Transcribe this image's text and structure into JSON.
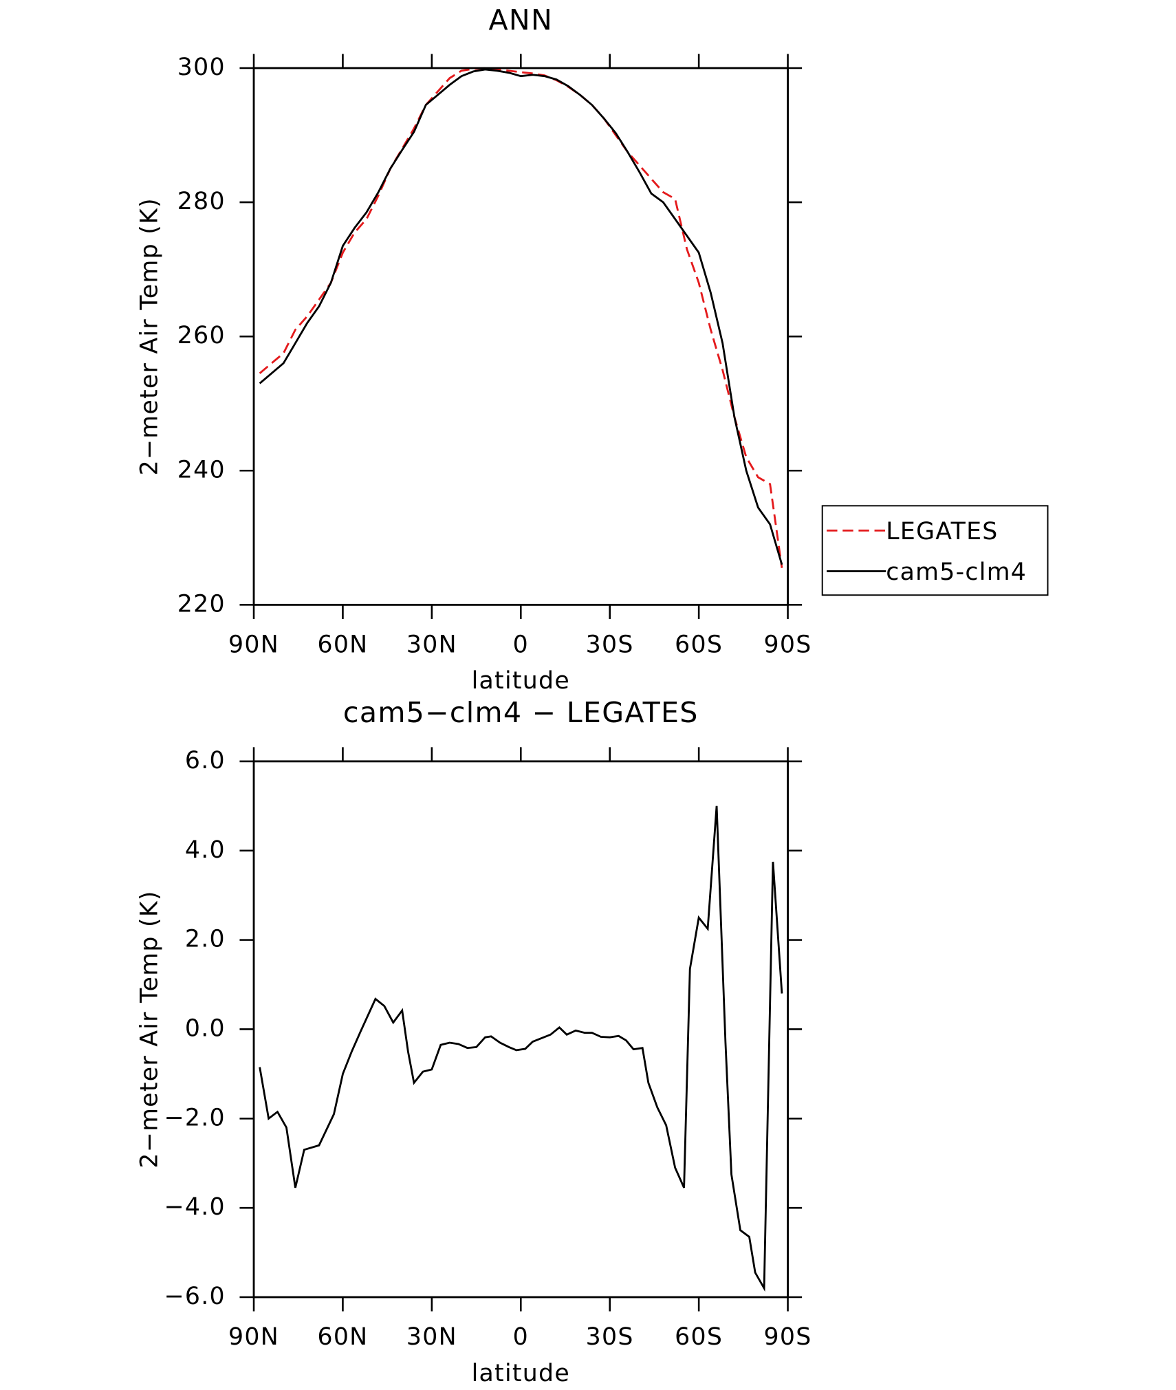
{
  "chart_data": [
    {
      "type": "line",
      "title": "ANN",
      "xlabel": "latitude",
      "ylabel": "2−meter Air Temp (K)",
      "xlim": [
        90,
        -90
      ],
      "xticks": [
        {
          "value": 90,
          "label": "90N"
        },
        {
          "value": 60,
          "label": "60N"
        },
        {
          "value": 30,
          "label": "30N"
        },
        0,
        {
          "value": -30,
          "label": "30S"
        },
        {
          "value": -60,
          "label": "60S"
        },
        {
          "value": -90,
          "label": "90S"
        }
      ],
      "ylim": [
        220,
        300
      ],
      "yticks": [
        220,
        240,
        260,
        280,
        300
      ],
      "legend": "right",
      "x": [
        88,
        84,
        80,
        76,
        72,
        68,
        64,
        60,
        56,
        52,
        48,
        44,
        40,
        36,
        32,
        28,
        24,
        20,
        16,
        12,
        8,
        4,
        0,
        -4,
        -8,
        -12,
        -16,
        -20,
        -24,
        -28,
        -32,
        -36,
        -40,
        -44,
        -48,
        -52,
        -56,
        -60,
        -64,
        -68,
        -72,
        -76,
        -80,
        -84,
        -88
      ],
      "series": [
        {
          "name": "LEGATES",
          "color": "#e41a1c",
          "dash": true,
          "values": [
            254.5,
            256,
            257.5,
            261,
            263,
            265.5,
            268,
            272.5,
            275.5,
            277.5,
            281,
            285,
            288,
            291,
            294.5,
            296.5,
            298.5,
            299.6,
            299.9,
            300,
            299.8,
            299.6,
            299.4,
            299.2,
            298.9,
            298.2,
            297.2,
            296,
            294.5,
            292.5,
            290,
            287.5,
            285.5,
            283.5,
            281.5,
            280.5,
            273,
            268,
            261,
            255,
            248,
            242,
            239,
            238,
            225.5
          ]
        },
        {
          "name": "cam5-clm4",
          "color": "#000000",
          "dash": false,
          "values": [
            253,
            254.5,
            256,
            259,
            262,
            264.5,
            268,
            273.5,
            276.2,
            278.5,
            281.5,
            285,
            287.8,
            290.5,
            294.5,
            296,
            297.5,
            298.8,
            299.5,
            299.8,
            299.6,
            299.3,
            298.8,
            299,
            298.8,
            298.3,
            297.3,
            296,
            294.5,
            292.5,
            290.3,
            287.5,
            284.5,
            281.3,
            280,
            277.5,
            275,
            272.5,
            266.5,
            259,
            248,
            240,
            234.5,
            232,
            226
          ]
        }
      ]
    },
    {
      "type": "line",
      "title": "cam5−clm4 − LEGATES",
      "xlabel": "latitude",
      "ylabel": "2−meter Air Temp (K)",
      "xlim": [
        90,
        -90
      ],
      "xticks": [
        {
          "value": 90,
          "label": "90N"
        },
        {
          "value": 60,
          "label": "60N"
        },
        {
          "value": 30,
          "label": "30N"
        },
        0,
        {
          "value": -30,
          "label": "30S"
        },
        {
          "value": -60,
          "label": "60S"
        },
        {
          "value": -90,
          "label": "90S"
        }
      ],
      "ylim": [
        -6,
        6
      ],
      "yticks": [
        {
          "value": -6,
          "label": "−6.0"
        },
        {
          "value": -4,
          "label": "−4.0"
        },
        {
          "value": -2,
          "label": "−2.0"
        },
        {
          "value": 0,
          "label": "0.0"
        },
        {
          "value": 2,
          "label": "2.0"
        },
        {
          "value": 4,
          "label": "4.0"
        },
        {
          "value": 6,
          "label": "6.0"
        }
      ],
      "x": [
        88,
        85,
        82,
        79,
        76,
        73,
        68,
        63,
        60,
        57,
        54,
        49,
        46,
        43,
        40,
        38,
        36,
        33,
        30,
        27,
        24,
        21,
        18,
        15,
        12,
        10,
        7,
        4,
        1.5,
        -1.5,
        -4,
        -7,
        -10,
        -13,
        -15.5,
        -18.5,
        -21.5,
        -24,
        -27,
        -30,
        -33,
        -35.5,
        -38,
        -41,
        -43,
        -46,
        -49,
        -52,
        -55,
        -57,
        -60,
        -63,
        -66,
        -69,
        -71,
        -74,
        -77,
        -79,
        -82,
        -85,
        -88
      ],
      "series": [
        {
          "color": "#000000",
          "values": [
            -0.85,
            -2.0,
            -1.85,
            -2.2,
            -3.55,
            -2.7,
            -2.6,
            -1.9,
            -1.0,
            -0.5,
            -0.05,
            0.68,
            0.52,
            0.15,
            0.42,
            -0.5,
            -1.2,
            -0.95,
            -0.9,
            -0.35,
            -0.3,
            -0.33,
            -0.42,
            -0.4,
            -0.18,
            -0.16,
            -0.3,
            -0.4,
            -0.47,
            -0.44,
            -0.28,
            -0.2,
            -0.12,
            0.04,
            -0.12,
            -0.03,
            -0.08,
            -0.08,
            -0.17,
            -0.18,
            -0.15,
            -0.25,
            -0.45,
            -0.42,
            -1.2,
            -1.75,
            -2.15,
            -3.1,
            -3.55,
            1.35,
            2.5,
            2.25,
            5.0,
            -0.3,
            -3.25,
            -4.5,
            -4.65,
            -5.45,
            -5.8,
            3.75,
            0.8
          ]
        }
      ]
    }
  ]
}
